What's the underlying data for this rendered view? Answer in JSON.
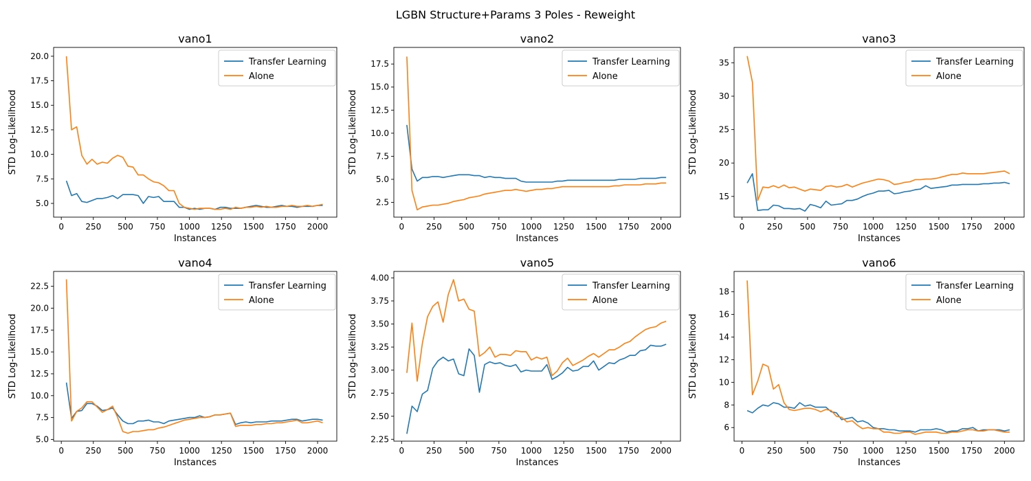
{
  "figure": {
    "title": "LGBN Structure+Params 3 Poles - Reweight"
  },
  "colors": {
    "transfer": "#1f77b4",
    "alone": "#ff7f0e"
  },
  "chart_data": [
    {
      "type": "line",
      "title": "vano1",
      "xlabel": "Instances",
      "ylabel": "STD Log-Likelihood",
      "xlim": [
        -60,
        2150
      ],
      "ylim": [
        3.6,
        20.9
      ],
      "xticks": [
        0,
        250,
        500,
        750,
        1000,
        1250,
        1500,
        1750,
        2000
      ],
      "yticks": [
        5.0,
        7.5,
        10.0,
        12.5,
        15.0,
        17.5,
        20.0
      ],
      "x": [
        40,
        80,
        120,
        160,
        200,
        240,
        280,
        320,
        360,
        400,
        440,
        480,
        520,
        560,
        600,
        640,
        680,
        720,
        760,
        800,
        840,
        880,
        920,
        960,
        1000,
        1040,
        1080,
        1120,
        1160,
        1200,
        1240,
        1280,
        1320,
        1360,
        1400,
        1440,
        1480,
        1520,
        1560,
        1600,
        1640,
        1680,
        1720,
        1760,
        1800,
        1840,
        1880,
        1920,
        1960,
        2000,
        2040
      ],
      "legend": "top-right",
      "series": [
        {
          "name": "Transfer Learning",
          "values": [
            7.3,
            5.8,
            6.0,
            5.2,
            5.1,
            5.3,
            5.5,
            5.5,
            5.6,
            5.8,
            5.5,
            5.9,
            5.9,
            5.9,
            5.8,
            5.0,
            5.7,
            5.6,
            5.7,
            5.2,
            5.2,
            5.2,
            4.6,
            4.6,
            4.4,
            4.5,
            4.4,
            4.5,
            4.5,
            4.4,
            4.6,
            4.6,
            4.5,
            4.5,
            4.5,
            4.6,
            4.7,
            4.8,
            4.7,
            4.6,
            4.6,
            4.7,
            4.8,
            4.7,
            4.7,
            4.6,
            4.7,
            4.7,
            4.7,
            4.8,
            4.8
          ]
        },
        {
          "name": "Alone",
          "values": [
            20.0,
            12.5,
            12.8,
            9.9,
            9.0,
            9.5,
            9.0,
            9.2,
            9.1,
            9.6,
            9.9,
            9.7,
            8.8,
            8.7,
            7.9,
            7.9,
            7.5,
            7.2,
            7.1,
            6.8,
            6.3,
            6.3,
            5.0,
            4.6,
            4.5,
            4.4,
            4.5,
            4.5,
            4.5,
            4.4,
            4.4,
            4.5,
            4.4,
            4.6,
            4.5,
            4.6,
            4.6,
            4.7,
            4.6,
            4.7,
            4.6,
            4.6,
            4.7,
            4.7,
            4.8,
            4.7,
            4.7,
            4.8,
            4.7,
            4.8,
            4.9
          ]
        }
      ]
    },
    {
      "type": "line",
      "title": "vano2",
      "xlabel": "Instances",
      "ylabel": "STD Log-Likelihood",
      "xlim": [
        -60,
        2150
      ],
      "ylim": [
        0.9,
        19.3
      ],
      "xticks": [
        0,
        250,
        500,
        750,
        1000,
        1250,
        1500,
        1750,
        2000
      ],
      "yticks": [
        2.5,
        5.0,
        7.5,
        10.0,
        12.5,
        15.0,
        17.5
      ],
      "x": [
        40,
        80,
        120,
        160,
        200,
        240,
        280,
        320,
        360,
        400,
        440,
        480,
        520,
        560,
        600,
        640,
        680,
        720,
        760,
        800,
        840,
        880,
        920,
        960,
        1000,
        1040,
        1080,
        1120,
        1160,
        1200,
        1240,
        1280,
        1320,
        1360,
        1400,
        1440,
        1480,
        1520,
        1560,
        1600,
        1640,
        1680,
        1720,
        1760,
        1800,
        1840,
        1880,
        1920,
        1960,
        2000,
        2040
      ],
      "legend": "top-right",
      "series": [
        {
          "name": "Transfer Learning",
          "values": [
            10.9,
            6.1,
            4.8,
            5.2,
            5.2,
            5.3,
            5.3,
            5.2,
            5.3,
            5.4,
            5.5,
            5.5,
            5.5,
            5.4,
            5.4,
            5.2,
            5.3,
            5.2,
            5.2,
            5.1,
            5.1,
            5.1,
            4.8,
            4.7,
            4.7,
            4.7,
            4.7,
            4.7,
            4.7,
            4.8,
            4.8,
            4.9,
            4.9,
            4.9,
            4.9,
            4.9,
            4.9,
            4.9,
            4.9,
            4.9,
            4.9,
            5.0,
            5.0,
            5.0,
            5.0,
            5.1,
            5.1,
            5.1,
            5.1,
            5.2,
            5.2
          ]
        },
        {
          "name": "Alone",
          "values": [
            18.3,
            3.8,
            1.7,
            2.0,
            2.1,
            2.2,
            2.2,
            2.3,
            2.4,
            2.6,
            2.7,
            2.8,
            3.0,
            3.1,
            3.2,
            3.4,
            3.5,
            3.6,
            3.7,
            3.8,
            3.8,
            3.9,
            3.8,
            3.7,
            3.8,
            3.9,
            3.9,
            4.0,
            4.0,
            4.1,
            4.2,
            4.2,
            4.2,
            4.2,
            4.2,
            4.2,
            4.2,
            4.2,
            4.2,
            4.2,
            4.3,
            4.3,
            4.4,
            4.4,
            4.4,
            4.4,
            4.5,
            4.5,
            4.5,
            4.6,
            4.6
          ]
        }
      ]
    },
    {
      "type": "line",
      "title": "vano3",
      "xlabel": "Instances",
      "ylabel": "STD Log-Likelihood",
      "xlim": [
        -60,
        2150
      ],
      "ylim": [
        11.9,
        37.3
      ],
      "xticks": [
        0,
        250,
        500,
        750,
        1000,
        1250,
        1500,
        1750,
        2000
      ],
      "yticks": [
        15,
        20,
        25,
        30,
        35
      ],
      "x": [
        40,
        80,
        120,
        160,
        200,
        240,
        280,
        320,
        360,
        400,
        440,
        480,
        520,
        560,
        600,
        640,
        680,
        720,
        760,
        800,
        840,
        880,
        920,
        960,
        1000,
        1040,
        1080,
        1120,
        1160,
        1200,
        1240,
        1280,
        1320,
        1360,
        1400,
        1440,
        1480,
        1520,
        1560,
        1600,
        1640,
        1680,
        1720,
        1760,
        1800,
        1840,
        1880,
        1920,
        1960,
        2000,
        2040
      ],
      "legend": "top-right",
      "series": [
        {
          "name": "Transfer Learning",
          "values": [
            17.0,
            18.4,
            12.9,
            13.0,
            13.0,
            13.7,
            13.6,
            13.2,
            13.2,
            13.1,
            13.2,
            12.8,
            13.8,
            13.6,
            13.3,
            14.3,
            13.7,
            13.8,
            13.9,
            14.4,
            14.4,
            14.6,
            15.0,
            15.3,
            15.5,
            15.8,
            15.8,
            15.9,
            15.4,
            15.5,
            15.7,
            15.8,
            16.0,
            16.1,
            16.6,
            16.2,
            16.3,
            16.4,
            16.5,
            16.7,
            16.7,
            16.8,
            16.8,
            16.8,
            16.8,
            16.9,
            16.9,
            17.0,
            17.0,
            17.1,
            16.9
          ]
        },
        {
          "name": "Alone",
          "values": [
            36.0,
            32.1,
            14.4,
            16.4,
            16.3,
            16.6,
            16.3,
            16.7,
            16.3,
            16.4,
            16.1,
            15.8,
            16.1,
            16.0,
            15.9,
            16.5,
            16.6,
            16.4,
            16.5,
            16.8,
            16.4,
            16.7,
            17.0,
            17.2,
            17.4,
            17.6,
            17.5,
            17.3,
            16.8,
            16.9,
            17.1,
            17.2,
            17.5,
            17.5,
            17.6,
            17.6,
            17.7,
            17.9,
            18.1,
            18.3,
            18.3,
            18.5,
            18.4,
            18.4,
            18.4,
            18.4,
            18.5,
            18.6,
            18.7,
            18.8,
            18.4
          ]
        }
      ]
    },
    {
      "type": "line",
      "title": "vano4",
      "xlabel": "Instances",
      "ylabel": "STD Log-Likelihood",
      "xlim": [
        -60,
        2150
      ],
      "ylim": [
        4.8,
        24.2
      ],
      "xticks": [
        0,
        250,
        500,
        750,
        1000,
        1250,
        1500,
        1750,
        2000
      ],
      "yticks": [
        5.0,
        7.5,
        10.0,
        12.5,
        15.0,
        17.5,
        20.0,
        22.5
      ],
      "x": [
        40,
        80,
        120,
        160,
        200,
        240,
        280,
        320,
        360,
        400,
        440,
        480,
        520,
        560,
        600,
        640,
        680,
        720,
        760,
        800,
        840,
        880,
        920,
        960,
        1000,
        1040,
        1080,
        1120,
        1160,
        1200,
        1240,
        1280,
        1320,
        1360,
        1400,
        1440,
        1480,
        1520,
        1560,
        1600,
        1640,
        1680,
        1720,
        1760,
        1800,
        1840,
        1880,
        1920,
        1960,
        2000,
        2040
      ],
      "legend": "top-right",
      "series": [
        {
          "name": "Transfer Learning",
          "values": [
            11.5,
            7.4,
            8.2,
            8.3,
            9.1,
            9.1,
            8.8,
            8.3,
            8.4,
            8.6,
            7.8,
            7.1,
            6.8,
            6.8,
            7.1,
            7.1,
            7.2,
            7.0,
            7.0,
            6.8,
            7.1,
            7.2,
            7.3,
            7.4,
            7.5,
            7.5,
            7.7,
            7.5,
            7.6,
            7.8,
            7.8,
            7.9,
            8.0,
            6.7,
            6.9,
            7.0,
            6.9,
            7.0,
            7.0,
            7.0,
            7.1,
            7.1,
            7.1,
            7.2,
            7.3,
            7.3,
            7.1,
            7.2,
            7.3,
            7.3,
            7.2
          ]
        },
        {
          "name": "Alone",
          "values": [
            23.3,
            7.1,
            8.2,
            8.6,
            9.3,
            9.3,
            8.7,
            8.1,
            8.4,
            8.8,
            7.5,
            5.9,
            5.7,
            5.9,
            5.9,
            6.0,
            6.1,
            6.1,
            6.3,
            6.4,
            6.6,
            6.8,
            7.0,
            7.2,
            7.3,
            7.4,
            7.5,
            7.5,
            7.6,
            7.8,
            7.8,
            7.9,
            8.0,
            6.5,
            6.6,
            6.6,
            6.6,
            6.7,
            6.7,
            6.8,
            6.8,
            6.9,
            6.9,
            7.0,
            7.1,
            7.2,
            6.9,
            6.9,
            7.0,
            7.1,
            6.9
          ]
        }
      ]
    },
    {
      "type": "line",
      "title": "vano5",
      "xlabel": "Instances",
      "ylabel": "STD Log-Likelihood",
      "xlim": [
        -60,
        2150
      ],
      "ylim": [
        2.23,
        4.07
      ],
      "xticks": [
        0,
        250,
        500,
        750,
        1000,
        1250,
        1500,
        1750,
        2000
      ],
      "yticks": [
        2.25,
        2.5,
        2.75,
        3.0,
        3.25,
        3.5,
        3.75,
        4.0
      ],
      "x": [
        40,
        80,
        120,
        160,
        200,
        240,
        280,
        320,
        360,
        400,
        440,
        480,
        520,
        560,
        600,
        640,
        680,
        720,
        760,
        800,
        840,
        880,
        920,
        960,
        1000,
        1040,
        1080,
        1120,
        1160,
        1200,
        1240,
        1280,
        1320,
        1360,
        1400,
        1440,
        1480,
        1520,
        1560,
        1600,
        1640,
        1680,
        1720,
        1760,
        1800,
        1840,
        1880,
        1920,
        1960,
        2000,
        2040
      ],
      "legend": "top-right",
      "series": [
        {
          "name": "Transfer Learning",
          "values": [
            2.31,
            2.61,
            2.55,
            2.74,
            2.78,
            3.02,
            3.1,
            3.14,
            3.1,
            3.12,
            2.96,
            2.94,
            3.23,
            3.16,
            2.76,
            3.06,
            3.09,
            3.07,
            3.08,
            3.05,
            3.04,
            3.06,
            2.98,
            3.0,
            2.99,
            2.99,
            2.99,
            3.06,
            2.9,
            2.93,
            2.97,
            3.03,
            2.99,
            3.0,
            3.04,
            3.04,
            3.1,
            3.0,
            3.04,
            3.08,
            3.07,
            3.11,
            3.13,
            3.16,
            3.16,
            3.21,
            3.22,
            3.27,
            3.26,
            3.26,
            3.28
          ]
        },
        {
          "name": "Alone",
          "values": [
            2.97,
            3.51,
            2.88,
            3.29,
            3.58,
            3.69,
            3.74,
            3.52,
            3.82,
            3.98,
            3.75,
            3.77,
            3.66,
            3.64,
            3.15,
            3.19,
            3.25,
            3.14,
            3.17,
            3.17,
            3.16,
            3.21,
            3.2,
            3.2,
            3.11,
            3.14,
            3.12,
            3.14,
            2.94,
            2.99,
            3.08,
            3.13,
            3.05,
            3.08,
            3.11,
            3.15,
            3.18,
            3.14,
            3.18,
            3.22,
            3.22,
            3.25,
            3.29,
            3.31,
            3.36,
            3.4,
            3.44,
            3.46,
            3.47,
            3.51,
            3.53
          ]
        }
      ]
    },
    {
      "type": "line",
      "title": "vano6",
      "xlabel": "Instances",
      "ylabel": "STD Log-Likelihood",
      "xlim": [
        -60,
        2150
      ],
      "ylim": [
        4.8,
        19.8
      ],
      "xticks": [
        0,
        250,
        500,
        750,
        1000,
        1250,
        1500,
        1750,
        2000
      ],
      "yticks": [
        6,
        8,
        10,
        12,
        14,
        16,
        18
      ],
      "x": [
        40,
        80,
        120,
        160,
        200,
        240,
        280,
        320,
        360,
        400,
        440,
        480,
        520,
        560,
        600,
        640,
        680,
        720,
        760,
        800,
        840,
        880,
        920,
        960,
        1000,
        1040,
        1080,
        1120,
        1160,
        1200,
        1240,
        1280,
        1320,
        1360,
        1400,
        1440,
        1480,
        1520,
        1560,
        1600,
        1640,
        1680,
        1720,
        1760,
        1800,
        1840,
        1880,
        1920,
        1960,
        2000,
        2040
      ],
      "legend": "top-right",
      "series": [
        {
          "name": "Transfer Learning",
          "values": [
            7.5,
            7.3,
            7.7,
            8.0,
            7.9,
            8.2,
            8.1,
            7.8,
            7.8,
            7.7,
            8.2,
            7.9,
            8.0,
            7.8,
            7.8,
            7.8,
            7.4,
            7.3,
            6.7,
            6.8,
            6.9,
            6.5,
            6.6,
            6.4,
            6.0,
            5.9,
            5.9,
            5.8,
            5.8,
            5.7,
            5.7,
            5.7,
            5.6,
            5.8,
            5.8,
            5.8,
            5.9,
            5.8,
            5.6,
            5.7,
            5.7,
            5.9,
            5.9,
            6.0,
            5.7,
            5.8,
            5.8,
            5.8,
            5.8,
            5.7,
            5.8
          ]
        },
        {
          "name": "Alone",
          "values": [
            19.0,
            8.9,
            10.1,
            11.6,
            11.4,
            9.4,
            9.8,
            8.2,
            7.6,
            7.5,
            7.6,
            7.7,
            7.7,
            7.6,
            7.4,
            7.6,
            7.5,
            7.0,
            6.9,
            6.5,
            6.6,
            6.2,
            5.9,
            6.0,
            5.9,
            5.9,
            5.6,
            5.6,
            5.5,
            5.5,
            5.6,
            5.6,
            5.4,
            5.5,
            5.6,
            5.6,
            5.6,
            5.5,
            5.5,
            5.6,
            5.6,
            5.7,
            5.8,
            5.8,
            5.7,
            5.7,
            5.8,
            5.8,
            5.7,
            5.6,
            5.6
          ]
        }
      ]
    }
  ]
}
